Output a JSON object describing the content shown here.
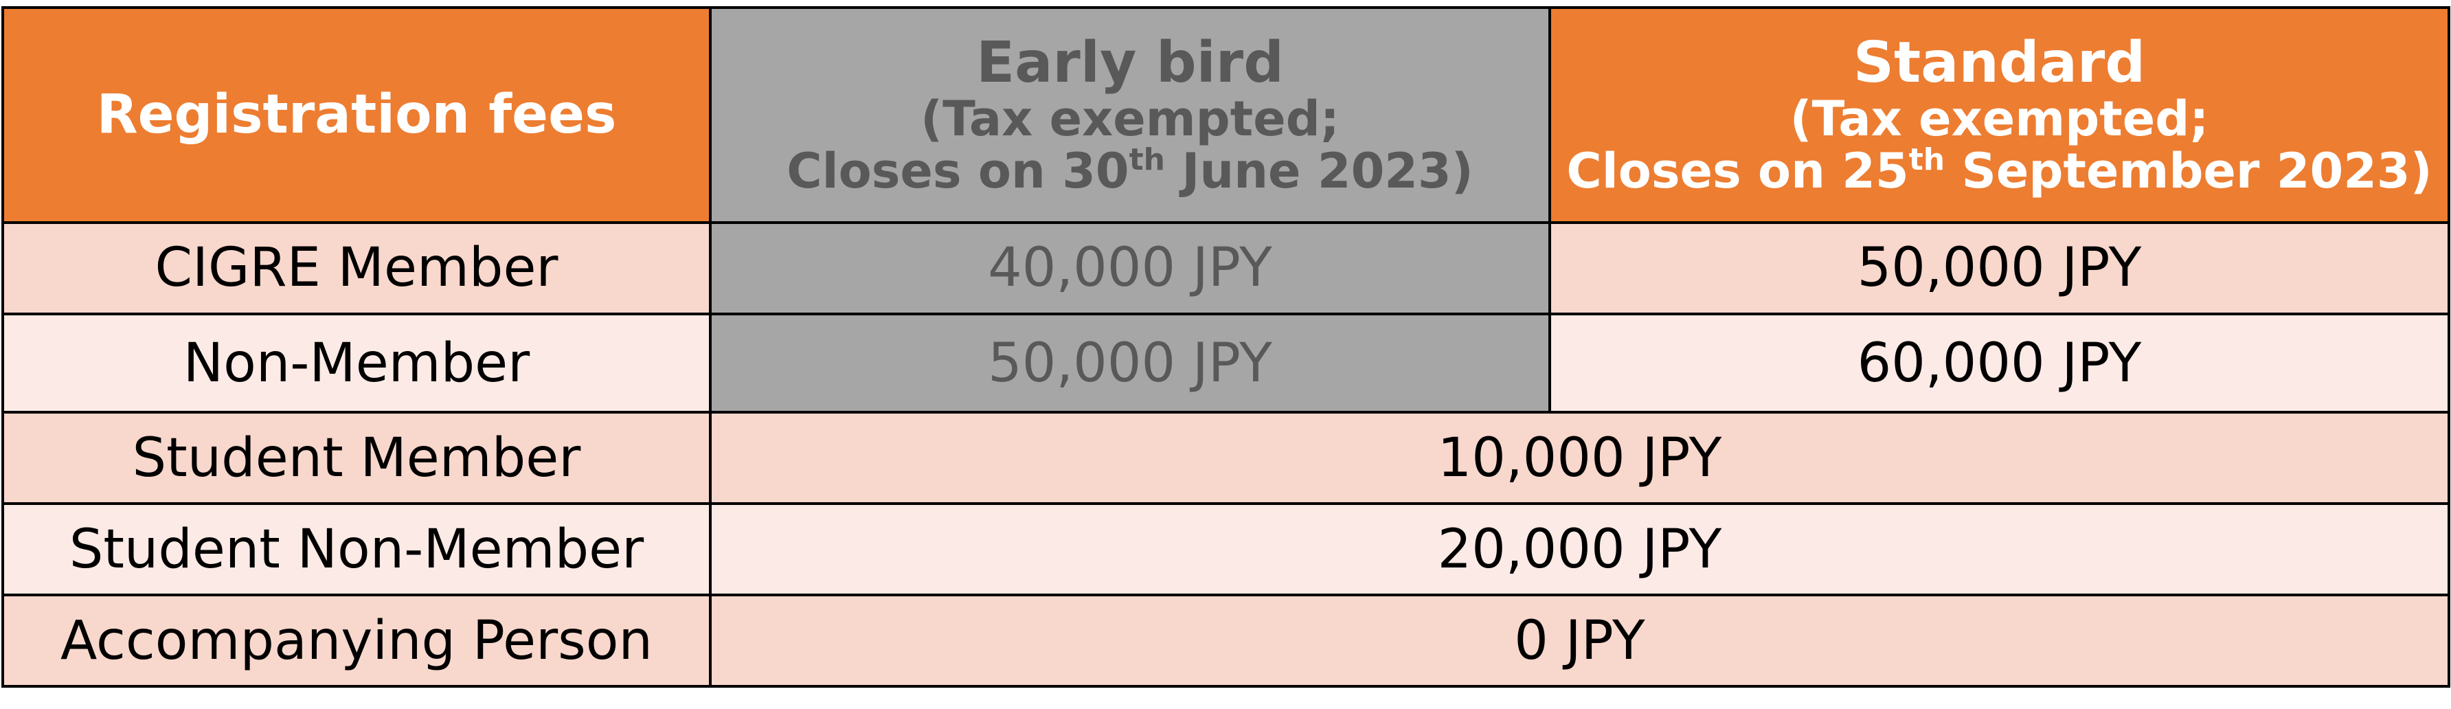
{
  "table": {
    "header": {
      "label": "Registration fees",
      "early": {
        "title": "Early bird",
        "line1": "(Tax exempted;",
        "line2_pre": "Closes on 30",
        "line2_sup": "th",
        "line2_post": " June 2023)"
      },
      "standard": {
        "title": "Standard",
        "line1": "(Tax exempted;",
        "line2_pre": "Closes on 25",
        "line2_sup": "th",
        "line2_post": " September 2023)"
      }
    },
    "rows": [
      {
        "label": "CIGRE Member",
        "early": "40,000 JPY",
        "standard": "50,000 JPY"
      },
      {
        "label": "Non-Member",
        "early": "50,000 JPY",
        "standard": "60,000 JPY"
      },
      {
        "label": "Student Member",
        "fee": "10,000 JPY"
      },
      {
        "label": "Student Non-Member",
        "fee": "20,000 JPY"
      },
      {
        "label": "Accompanying Person",
        "fee": "0 JPY"
      }
    ]
  },
  "colors": {
    "header_orange": "#ED7D31",
    "early_grey": "#A6A6A6",
    "early_text": "#595959",
    "row_dark": "#F8D7CC",
    "row_light": "#FBEAE5"
  }
}
